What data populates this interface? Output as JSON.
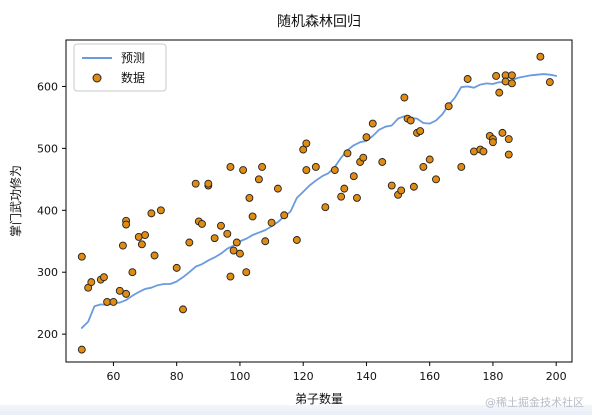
{
  "chart_data": {
    "type": "scatter",
    "title": "随机森林回归",
    "xlabel": "弟子数量",
    "ylabel": "掌门武功修为",
    "xlim": [
      45,
      205
    ],
    "ylim": [
      155,
      675
    ],
    "x_ticks": [
      60,
      80,
      100,
      120,
      140,
      160,
      180,
      200
    ],
    "y_ticks": [
      200,
      300,
      400,
      500,
      600
    ],
    "grid": false,
    "legend_position": "top-left",
    "series": [
      {
        "name": "预测",
        "kind": "line",
        "color": "#6a9bdf",
        "points": [
          [
            50,
            210
          ],
          [
            52,
            220
          ],
          [
            54,
            245
          ],
          [
            56,
            248
          ],
          [
            58,
            247
          ],
          [
            60,
            250
          ],
          [
            62,
            251
          ],
          [
            64,
            255
          ],
          [
            66,
            262
          ],
          [
            68,
            268
          ],
          [
            70,
            273
          ],
          [
            72,
            275
          ],
          [
            74,
            279
          ],
          [
            76,
            281
          ],
          [
            78,
            281
          ],
          [
            80,
            285
          ],
          [
            82,
            292
          ],
          [
            84,
            300
          ],
          [
            86,
            309
          ],
          [
            88,
            313
          ],
          [
            90,
            319
          ],
          [
            92,
            324
          ],
          [
            94,
            330
          ],
          [
            96,
            338
          ],
          [
            98,
            343
          ],
          [
            100,
            350
          ],
          [
            102,
            354
          ],
          [
            104,
            360
          ],
          [
            106,
            364
          ],
          [
            108,
            368
          ],
          [
            110,
            374
          ],
          [
            112,
            381
          ],
          [
            114,
            390
          ],
          [
            116,
            398
          ],
          [
            118,
            420
          ],
          [
            120,
            430
          ],
          [
            122,
            440
          ],
          [
            124,
            448
          ],
          [
            126,
            455
          ],
          [
            128,
            460
          ],
          [
            130,
            470
          ],
          [
            132,
            485
          ],
          [
            134,
            497
          ],
          [
            136,
            505
          ],
          [
            138,
            510
          ],
          [
            140,
            512
          ],
          [
            142,
            520
          ],
          [
            144,
            530
          ],
          [
            146,
            535
          ],
          [
            148,
            537
          ],
          [
            150,
            548
          ],
          [
            152,
            552
          ],
          [
            154,
            549
          ],
          [
            156,
            548
          ],
          [
            158,
            541
          ],
          [
            160,
            540
          ],
          [
            162,
            545
          ],
          [
            164,
            555
          ],
          [
            166,
            570
          ],
          [
            168,
            582
          ],
          [
            170,
            599
          ],
          [
            172,
            600
          ],
          [
            174,
            598
          ],
          [
            176,
            603
          ],
          [
            178,
            605
          ],
          [
            180,
            604
          ],
          [
            182,
            607
          ],
          [
            184,
            606
          ],
          [
            186,
            610
          ],
          [
            188,
            614
          ],
          [
            190,
            616
          ],
          [
            192,
            618
          ],
          [
            194,
            619
          ],
          [
            196,
            620
          ],
          [
            198,
            619
          ],
          [
            200,
            617
          ]
        ]
      },
      {
        "name": "数据",
        "kind": "scatter",
        "color": "#e08b12",
        "edgecolor": "#222222",
        "points": [
          [
            50,
            325
          ],
          [
            50,
            175
          ],
          [
            52,
            275
          ],
          [
            53,
            284
          ],
          [
            56,
            288
          ],
          [
            57,
            292
          ],
          [
            58,
            252
          ],
          [
            60,
            252
          ],
          [
            62,
            270
          ],
          [
            63,
            343
          ],
          [
            64,
            383
          ],
          [
            64,
            377
          ],
          [
            64,
            265
          ],
          [
            66,
            300
          ],
          [
            68,
            357
          ],
          [
            69,
            345
          ],
          [
            70,
            360
          ],
          [
            72,
            395
          ],
          [
            73,
            327
          ],
          [
            75,
            400
          ],
          [
            80,
            307
          ],
          [
            82,
            240
          ],
          [
            84,
            348
          ],
          [
            86,
            443
          ],
          [
            87,
            382
          ],
          [
            88,
            378
          ],
          [
            90,
            440
          ],
          [
            90,
            443
          ],
          [
            92,
            355
          ],
          [
            94,
            375
          ],
          [
            96,
            362
          ],
          [
            97,
            470
          ],
          [
            97,
            293
          ],
          [
            98,
            335
          ],
          [
            99,
            348
          ],
          [
            100,
            330
          ],
          [
            101,
            465
          ],
          [
            102,
            300
          ],
          [
            103,
            420
          ],
          [
            104,
            390
          ],
          [
            106,
            450
          ],
          [
            107,
            470
          ],
          [
            108,
            350
          ],
          [
            110,
            380
          ],
          [
            112,
            435
          ],
          [
            114,
            392
          ],
          [
            118,
            352
          ],
          [
            120,
            498
          ],
          [
            121,
            508
          ],
          [
            121,
            465
          ],
          [
            124,
            470
          ],
          [
            127,
            405
          ],
          [
            130,
            465
          ],
          [
            132,
            422
          ],
          [
            133,
            435
          ],
          [
            134,
            492
          ],
          [
            136,
            455
          ],
          [
            137,
            420
          ],
          [
            138,
            478
          ],
          [
            139,
            485
          ],
          [
            140,
            518
          ],
          [
            142,
            540
          ],
          [
            145,
            478
          ],
          [
            148,
            440
          ],
          [
            150,
            425
          ],
          [
            151,
            432
          ],
          [
            152,
            582
          ],
          [
            153,
            548
          ],
          [
            154,
            545
          ],
          [
            155,
            438
          ],
          [
            156,
            525
          ],
          [
            157,
            528
          ],
          [
            158,
            470
          ],
          [
            160,
            482
          ],
          [
            162,
            450
          ],
          [
            166,
            568
          ],
          [
            170,
            470
          ],
          [
            172,
            612
          ],
          [
            174,
            495
          ],
          [
            176,
            498
          ],
          [
            177,
            495
          ],
          [
            179,
            520
          ],
          [
            180,
            515
          ],
          [
            180,
            510
          ],
          [
            181,
            617
          ],
          [
            182,
            590
          ],
          [
            183,
            525
          ],
          [
            184,
            618
          ],
          [
            184,
            608
          ],
          [
            185,
            515
          ],
          [
            185,
            490
          ],
          [
            186,
            618
          ],
          [
            186,
            605
          ],
          [
            195,
            648
          ],
          [
            198,
            607
          ]
        ]
      }
    ]
  },
  "watermark": "@稀土掘金技术社区"
}
